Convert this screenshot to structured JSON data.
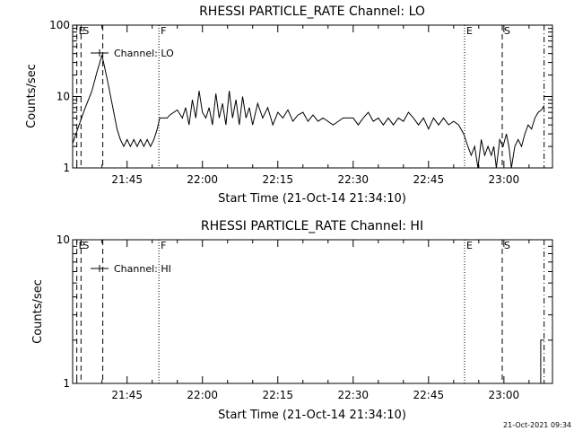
{
  "chart_data": [
    {
      "type": "line",
      "title": "RHESSI PARTICLE_RATE Channel: LO",
      "xlabel": "Start Time (21-Oct-14 21:34:10)",
      "ylabel": "Counts/sec",
      "ylog": true,
      "ylim": [
        1,
        100
      ],
      "xlim": [
        "21:34:10",
        "23:09:40"
      ],
      "xticks": [
        {
          "time": "21:45",
          "label": "21:45"
        },
        {
          "time": "22:00",
          "label": "22:00"
        },
        {
          "time": "22:15",
          "label": "22:15"
        },
        {
          "time": "22:30",
          "label": "22:30"
        },
        {
          "time": "22:45",
          "label": "22:45"
        },
        {
          "time": "23:00",
          "label": "23:00"
        }
      ],
      "yticks": [
        {
          "value": 1,
          "label": "1"
        },
        {
          "value": 10,
          "label": "10"
        },
        {
          "value": 100,
          "label": "100"
        }
      ],
      "legend": {
        "label": "Channel: LO",
        "position": "top-left"
      },
      "markers": [
        {
          "time": "21:35:00",
          "label": "E",
          "style": "dashed"
        },
        {
          "time": "21:35:50",
          "label": "S",
          "style": "dashed"
        },
        {
          "time": "21:40:10",
          "label": "",
          "style": "dashed"
        },
        {
          "time": "21:51:20",
          "label": "F",
          "style": "dotted"
        },
        {
          "time": "22:52:10",
          "label": "E",
          "style": "dotted"
        },
        {
          "time": "22:59:40",
          "label": "S",
          "style": "dashed"
        },
        {
          "time": "23:08:00",
          "label": "",
          "style": "dashdot"
        }
      ],
      "segments": [
        {
          "name": "Channel: LO",
          "points": [
            [
              "21:34:10",
              2.2
            ],
            [
              "21:35:10",
              3.5
            ],
            [
              "21:36:30",
              6.5
            ],
            [
              "21:38:00",
              12
            ],
            [
              "21:39:00",
              22
            ],
            [
              "21:40:00",
              38
            ],
            [
              "21:41:00",
              18
            ],
            [
              "21:42:00",
              8
            ],
            [
              "21:43:00",
              3.5
            ],
            [
              "21:43:40",
              2.5
            ],
            [
              "21:44:20",
              2
            ],
            [
              "21:45:00",
              2.5
            ],
            [
              "21:45:40",
              2
            ],
            [
              "21:46:20",
              2.5
            ],
            [
              "21:47:00",
              2
            ],
            [
              "21:47:40",
              2.5
            ],
            [
              "21:48:20",
              2
            ],
            [
              "21:49:00",
              2.5
            ],
            [
              "21:49:40",
              2
            ],
            [
              "21:50:20",
              2.5
            ],
            [
              "21:51:00",
              3.5
            ],
            [
              "21:51:30",
              5
            ],
            [
              "21:53:00",
              5
            ],
            [
              "21:53:30",
              5.5
            ],
            [
              "21:55:00",
              6.5
            ],
            [
              "21:56:00",
              5
            ],
            [
              "21:56:40",
              7
            ],
            [
              "21:57:20",
              4
            ],
            [
              "21:58:00",
              9
            ],
            [
              "21:58:40",
              5
            ],
            [
              "21:59:20",
              12
            ],
            [
              "22:00:00",
              6
            ],
            [
              "22:00:40",
              5
            ],
            [
              "22:01:20",
              7
            ],
            [
              "22:02:00",
              4
            ],
            [
              "22:02:40",
              11
            ],
            [
              "22:03:20",
              5
            ],
            [
              "22:04:00",
              8
            ],
            [
              "22:04:40",
              4
            ],
            [
              "22:05:20",
              12
            ],
            [
              "22:06:00",
              5
            ],
            [
              "22:06:40",
              9
            ],
            [
              "22:07:20",
              4
            ],
            [
              "22:08:00",
              10
            ],
            [
              "22:08:40",
              5
            ],
            [
              "22:09:20",
              7
            ],
            [
              "22:10:00",
              4
            ],
            [
              "22:11:00",
              8
            ],
            [
              "22:12:00",
              5
            ],
            [
              "22:13:00",
              7
            ],
            [
              "22:14:00",
              4
            ],
            [
              "22:15:00",
              6
            ],
            [
              "22:16:00",
              5
            ],
            [
              "22:17:00",
              6.5
            ],
            [
              "22:18:00",
              4.5
            ],
            [
              "22:19:00",
              5.5
            ],
            [
              "22:20:00",
              6
            ],
            [
              "22:21:00",
              4.5
            ],
            [
              "22:22:00",
              5.5
            ],
            [
              "22:23:00",
              4.5
            ],
            [
              "22:24:00",
              5
            ],
            [
              "22:26:00",
              4
            ],
            [
              "22:28:00",
              5
            ],
            [
              "22:30:00",
              5
            ],
            [
              "22:31:00",
              4
            ],
            [
              "22:32:00",
              5
            ],
            [
              "22:33:00",
              6
            ],
            [
              "22:34:00",
              4.5
            ],
            [
              "22:35:00",
              5
            ],
            [
              "22:36:00",
              4
            ],
            [
              "22:37:00",
              5
            ],
            [
              "22:38:00",
              4
            ],
            [
              "22:39:00",
              5
            ],
            [
              "22:40:00",
              4.5
            ],
            [
              "22:41:00",
              6
            ],
            [
              "22:42:00",
              5
            ],
            [
              "22:43:00",
              4
            ],
            [
              "22:44:00",
              5
            ],
            [
              "22:45:00",
              3.5
            ],
            [
              "22:46:00",
              5
            ],
            [
              "22:47:00",
              4
            ],
            [
              "22:48:00",
              5
            ],
            [
              "22:49:00",
              4
            ],
            [
              "22:50:00",
              4.5
            ],
            [
              "22:51:00",
              4
            ],
            [
              "22:52:00",
              3
            ]
          ]
        },
        {
          "name": "Channel: LO",
          "points": [
            [
              "22:52:00",
              3
            ],
            [
              "22:52:50",
              2
            ],
            [
              "22:53:30",
              1.5
            ],
            [
              "22:54:10",
              2
            ],
            [
              "22:54:50",
              1
            ],
            [
              "22:55:30",
              2.5
            ],
            [
              "22:56:10",
              1.5
            ],
            [
              "22:56:50",
              2
            ],
            [
              "22:57:30",
              1.5
            ],
            [
              "22:58:00",
              2
            ],
            [
              "22:58:30",
              1
            ],
            [
              "22:59:10",
              2.5
            ],
            [
              "22:59:50",
              2
            ],
            [
              "23:00:30",
              3
            ],
            [
              "23:01:00",
              2
            ],
            [
              "23:01:30",
              1
            ],
            [
              "23:02:10",
              2
            ],
            [
              "23:02:50",
              2.5
            ],
            [
              "23:03:30",
              2
            ],
            [
              "23:04:10",
              3
            ],
            [
              "23:04:50",
              4
            ],
            [
              "23:05:30",
              3.5
            ],
            [
              "23:06:10",
              5
            ],
            [
              "23:06:50",
              6
            ],
            [
              "23:07:30",
              6.5
            ],
            [
              "23:08:00",
              7.5
            ]
          ]
        }
      ]
    },
    {
      "type": "line",
      "title": "RHESSI PARTICLE_RATE Channel: HI",
      "xlabel": "Start Time (21-Oct-14 21:34:10)",
      "ylabel": "Counts/sec",
      "ylog": true,
      "ylim": [
        1,
        10
      ],
      "xlim": [
        "21:34:10",
        "23:09:40"
      ],
      "xticks": [
        {
          "time": "21:45",
          "label": "21:45"
        },
        {
          "time": "22:00",
          "label": "22:00"
        },
        {
          "time": "22:15",
          "label": "22:15"
        },
        {
          "time": "22:30",
          "label": "22:30"
        },
        {
          "time": "22:45",
          "label": "22:45"
        },
        {
          "time": "23:00",
          "label": "23:00"
        }
      ],
      "yticks": [
        {
          "value": 1,
          "label": "1"
        },
        {
          "value": 10,
          "label": "10"
        }
      ],
      "legend": {
        "label": "Channel: HI",
        "position": "top-left"
      },
      "markers": [
        {
          "time": "21:35:00",
          "label": "E",
          "style": "dashed"
        },
        {
          "time": "21:35:50",
          "label": "S",
          "style": "dashed"
        },
        {
          "time": "21:40:10",
          "label": "",
          "style": "dashed"
        },
        {
          "time": "21:51:20",
          "label": "F",
          "style": "dotted"
        },
        {
          "time": "22:52:10",
          "label": "E",
          "style": "dotted"
        },
        {
          "time": "22:59:40",
          "label": "S",
          "style": "dashed"
        },
        {
          "time": "23:08:00",
          "label": "",
          "style": "dashdot"
        }
      ],
      "segments": [
        {
          "name": "Channel: HI",
          "points": [
            [
              "23:06:50",
              1
            ],
            [
              "23:07:20",
              1
            ],
            [
              "23:07:20",
              2
            ],
            [
              "23:08:00",
              2
            ]
          ]
        }
      ]
    }
  ],
  "footer": {
    "timestamp": "21-Oct-2021 09:34"
  }
}
